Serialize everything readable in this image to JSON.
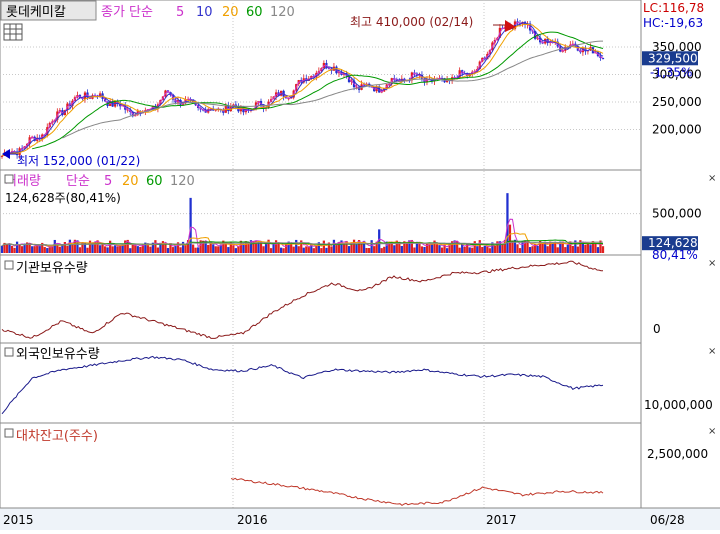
{
  "header": {
    "stock_name": "롯데케미칼",
    "legend_prefix": "종가 단순",
    "ma_periods": [
      "5",
      "10",
      "20",
      "60",
      "120"
    ],
    "ma_colors": [
      "#cc33cc",
      "#3333cc",
      "#f0a000",
      "#009900",
      "#888888"
    ]
  },
  "price_panel": {
    "lc": "LC:116,78",
    "hc": "HC:-19,63",
    "y_ticks": [
      "350,000",
      "300,000",
      "250,000",
      "200,000"
    ],
    "y_tick_values": [
      350000,
      300000,
      250000,
      200000
    ],
    "ylim": [
      130000,
      430000
    ],
    "current_price": "329,500",
    "current_price_value": 329500,
    "change": "-1,35%",
    "high_label": "최고 410,000 (02/14)",
    "high_value": 410000,
    "low_label": "최저 152,000 (01/22)",
    "low_value": 152000
  },
  "volume_panel": {
    "title": "거래량",
    "legend_prefix": "단순",
    "ma_periods": [
      "5",
      "20",
      "60",
      "120"
    ],
    "ma_colors": [
      "#cc33cc",
      "#f0a000",
      "#009900",
      "#888888"
    ],
    "info": "124,628주(80,41%)",
    "y_tick": "500,000",
    "y_tick_value": 500000,
    "ylim": [
      0,
      800000
    ],
    "current_volume": "124,628",
    "current_volume_value": 124628,
    "current_pct": "80,41%"
  },
  "inst_panel": {
    "title": "기관보유수량",
    "y_tick": "0",
    "y_tick_value": 0
  },
  "foreign_panel": {
    "title": "외국인보유수량",
    "y_tick": "10,000,000"
  },
  "loan_panel": {
    "title": "대차잔고(주수)",
    "y_tick": "2,500,000"
  },
  "x_axis": {
    "labels": [
      "2015",
      "2016",
      "2017"
    ],
    "right_label": "06/28"
  },
  "chart_data": {
    "type": "line",
    "x_start": "2015-01",
    "x_end": "2017-06",
    "price_close": [
      [
        "2015-01",
        152000
      ],
      [
        "2015-02",
        168000
      ],
      [
        "2015-03",
        195000
      ],
      [
        "2015-04",
        240000
      ],
      [
        "2015-05",
        265000
      ],
      [
        "2015-06",
        255000
      ],
      [
        "2015-07",
        235000
      ],
      [
        "2015-08",
        232000
      ],
      [
        "2015-09",
        265000
      ],
      [
        "2015-10",
        245000
      ],
      [
        "2015-11",
        235000
      ],
      [
        "2015-12",
        240000
      ],
      [
        "2016-01",
        235000
      ],
      [
        "2016-02",
        255000
      ],
      [
        "2016-03",
        270000
      ],
      [
        "2016-04",
        305000
      ],
      [
        "2016-05",
        318000
      ],
      [
        "2016-06",
        280000
      ],
      [
        "2016-07",
        275000
      ],
      [
        "2016-08",
        290000
      ],
      [
        "2016-09",
        295000
      ],
      [
        "2016-10",
        285000
      ],
      [
        "2016-11",
        295000
      ],
      [
        "2016-12",
        310000
      ],
      [
        "2017-01",
        380000
      ],
      [
        "2017-02",
        400000
      ],
      [
        "2017-03",
        360000
      ],
      [
        "2017-04",
        352000
      ],
      [
        "2017-05",
        350000
      ],
      [
        "2017-06",
        329500
      ]
    ]
  }
}
